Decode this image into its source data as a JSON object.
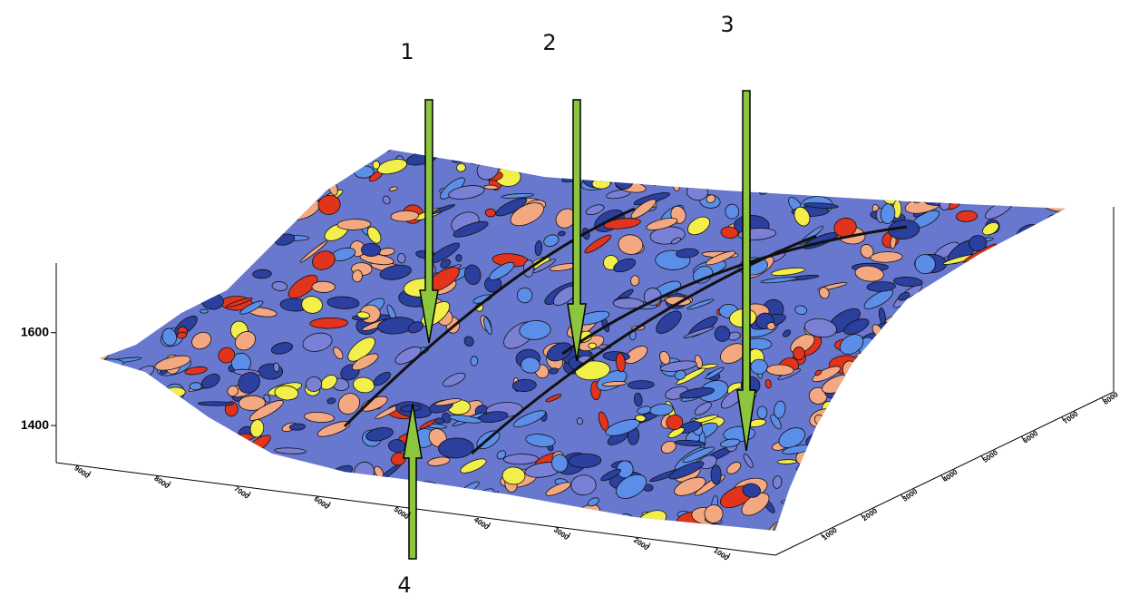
{
  "chart_data": {
    "type": "surface",
    "annotations": [
      "1",
      "2",
      "3",
      "4"
    ],
    "zlim": [
      1320,
      1750
    ],
    "zticks": [
      1400,
      1600
    ],
    "xticks": [
      9000,
      8000,
      7000,
      6000,
      5000,
      4000,
      3000,
      2000,
      1000
    ],
    "yticks": [
      1000,
      2000,
      3000,
      4000,
      5000,
      6000,
      7000,
      8000
    ]
  }
}
